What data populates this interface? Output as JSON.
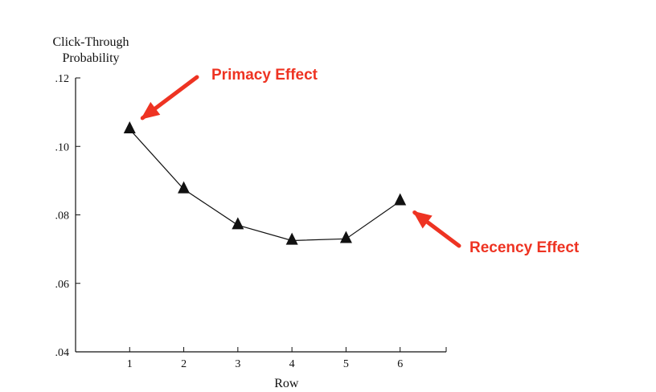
{
  "chart_data": {
    "type": "line",
    "x": [
      1,
      2,
      3,
      4,
      5,
      6
    ],
    "series": [
      {
        "values": [
          0.105,
          0.0875,
          0.077,
          0.0725,
          0.073,
          0.084
        ]
      }
    ],
    "xlabel": "Row",
    "ylabel_lines": [
      "Click-Through",
      "Probability"
    ],
    "ylim": [
      0.04,
      0.12
    ],
    "xlim": [
      0,
      7
    ],
    "y_ticks": [
      0.04,
      0.06,
      0.08,
      0.1,
      0.12
    ],
    "y_tick_labels": [
      ".04",
      ".06",
      ".08",
      ".10",
      ".12"
    ],
    "x_ticks": [
      1,
      2,
      3,
      4,
      5,
      6
    ],
    "x_tick_labels": [
      "1",
      "2",
      "3",
      "4",
      "5",
      "6"
    ],
    "grid": false,
    "marker": "triangle",
    "annotations": [
      {
        "text": "Primacy Effect",
        "points_to_x": 1,
        "color": "#ee3322"
      },
      {
        "text": "Recency Effect",
        "points_to_x": 6,
        "color": "#ee3322"
      }
    ]
  }
}
